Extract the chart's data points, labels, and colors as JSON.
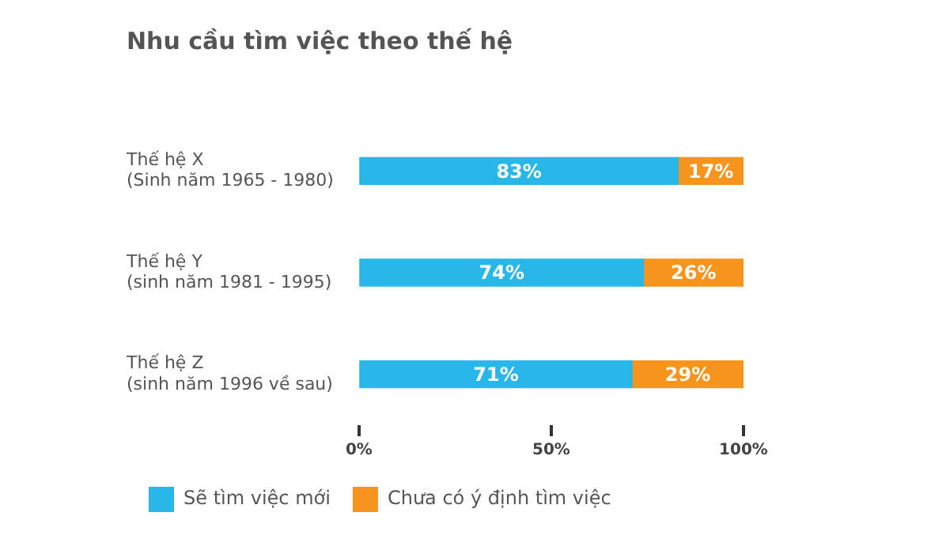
{
  "chart_data": {
    "type": "bar",
    "orientation": "horizontal",
    "stacked": true,
    "title": "Nhu cầu tìm việc theo thế hệ",
    "categories": [
      "Thế hệ X\n(Sinh năm 1965 - 1980)",
      "Thế hệ Y\n(sinh năm 1981 - 1995)",
      "Thế hệ Z\n(sinh năm 1996 về sau)"
    ],
    "series": [
      {
        "name": "Sẽ tìm việc mới",
        "color": "#29b6e8",
        "values": [
          83,
          74,
          71
        ],
        "value_labels": [
          "83%",
          "74%",
          "71%"
        ]
      },
      {
        "name": "Chưa có ý định tìm việc",
        "color": "#f7941d",
        "values": [
          17,
          26,
          29
        ],
        "value_labels": [
          "17%",
          "26%",
          "29%"
        ]
      }
    ],
    "xlim": [
      0,
      100
    ],
    "xticks": [
      {
        "value": 0,
        "label": "0%"
      },
      {
        "value": 50,
        "label": "50%"
      },
      {
        "value": 100,
        "label": "100%"
      }
    ],
    "grid": false,
    "legend": "bottom"
  }
}
